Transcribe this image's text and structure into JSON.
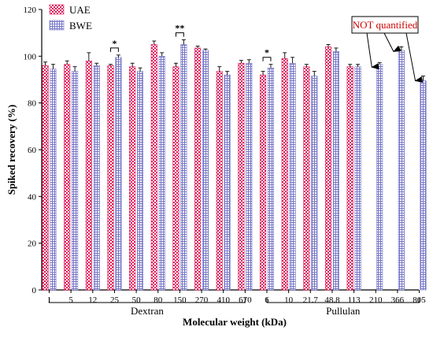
{
  "chart_data": {
    "type": "bar",
    "xlabel": "Molecular weight (kDa)",
    "ylabel": "Spiked recovery (%)",
    "ylim": [
      0,
      120
    ],
    "yticks": [
      0,
      20,
      40,
      60,
      80,
      100,
      120
    ],
    "grid": false,
    "legend_position": "top-left",
    "categories": [
      "1",
      "5",
      "12",
      "25",
      "50",
      "80",
      "150",
      "270",
      "410",
      "670",
      "6",
      "10",
      "21.7",
      "48.8",
      "113",
      "210",
      "366",
      "805"
    ],
    "series": [
      {
        "name": "UAE",
        "color": "#e0195a",
        "pattern": "checker",
        "values": [
          96,
          96.5,
          98,
          96,
          95.5,
          105,
          95.5,
          103.5,
          93.5,
          97,
          92,
          99,
          95.5,
          104,
          95.5,
          null,
          null,
          null
        ],
        "errors": [
          1.5,
          1.5,
          3.5,
          0.5,
          1.5,
          1.5,
          1.5,
          0.8,
          2,
          1.2,
          1.5,
          2.5,
          1,
          1,
          1,
          0,
          0,
          0
        ]
      },
      {
        "name": "BWE",
        "color": "#7878c8",
        "pattern": "hatch",
        "values": [
          94.5,
          93.5,
          96,
          99.5,
          93.5,
          100,
          105,
          102.5,
          92,
          97,
          95,
          97,
          91.5,
          102,
          95.5,
          96.5,
          102.5,
          89.5
        ],
        "errors": [
          2,
          2,
          1,
          1,
          1.5,
          1.5,
          2,
          0.6,
          1.5,
          1.5,
          1.5,
          2.5,
          2,
          1.5,
          1,
          0.8,
          1.5,
          2
        ]
      }
    ],
    "groups": [
      {
        "label": "Dextran",
        "start": 0,
        "end": 9
      },
      {
        "label": "Pullulan",
        "start": 10,
        "end": 17
      }
    ],
    "significance": [
      {
        "index": 3,
        "label": "*"
      },
      {
        "index": 6,
        "label": "**"
      },
      {
        "index": 10,
        "label": "*"
      }
    ],
    "annotation": {
      "text": "NOT quantified",
      "target_indices": [
        15,
        16,
        17
      ]
    }
  }
}
